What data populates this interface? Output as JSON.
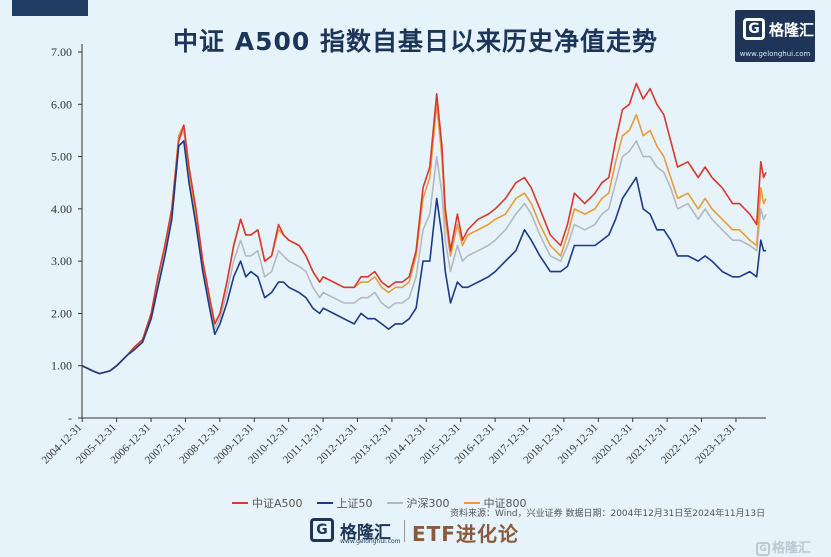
{
  "title": "中证 A500 指数自基日以来历史净值走势",
  "logo": {
    "name": "格隆汇",
    "url": "www.gelonghui.com"
  },
  "source": "资料来源：Wind，兴业证券  数据日期：2004年12月31日至2024年11月13日",
  "footer": {
    "brand": "格隆汇",
    "url": "www.gelonghui.com",
    "column": "ETF进化论"
  },
  "watermark": "格隆汇",
  "chart_data": {
    "type": "line",
    "ylim": [
      0,
      7
    ],
    "yticks": [
      "-",
      "1.00",
      "2.00",
      "3.00",
      "4.00",
      "5.00",
      "6.00",
      "7.00"
    ],
    "xticks": [
      "2004-12-31",
      "2005-12-31",
      "2006-12-31",
      "2007-12-31",
      "2008-12-31",
      "2009-12-31",
      "2010-12-31",
      "2011-12-31",
      "2012-12-31",
      "2013-12-31",
      "2014-12-31",
      "2015-12-31",
      "2016-12-31",
      "2017-12-31",
      "2018-12-31",
      "2019-12-31",
      "2020-12-31",
      "2021-12-31",
      "2022-12-31",
      "2023-12-31"
    ],
    "x": [
      2004.99,
      2005.3,
      2005.5,
      2005.8,
      2006.0,
      2006.3,
      2006.5,
      2006.75,
      2007.0,
      2007.2,
      2007.4,
      2007.6,
      2007.8,
      2007.95,
      2008.1,
      2008.3,
      2008.5,
      2008.7,
      2008.85,
      2009.0,
      2009.2,
      2009.4,
      2009.6,
      2009.75,
      2009.9,
      2010.1,
      2010.3,
      2010.5,
      2010.7,
      2010.85,
      2011.0,
      2011.3,
      2011.5,
      2011.7,
      2011.9,
      2012.0,
      2012.3,
      2012.6,
      2012.9,
      2013.1,
      2013.3,
      2013.5,
      2013.7,
      2013.9,
      2014.1,
      2014.3,
      2014.5,
      2014.7,
      2014.9,
      2015.1,
      2015.3,
      2015.45,
      2015.55,
      2015.7,
      2015.9,
      2016.05,
      2016.2,
      2016.5,
      2016.8,
      2017.0,
      2017.3,
      2017.6,
      2017.85,
      2018.05,
      2018.3,
      2018.6,
      2018.9,
      2019.1,
      2019.3,
      2019.6,
      2019.9,
      2020.1,
      2020.3,
      2020.5,
      2020.7,
      2020.9,
      2021.1,
      2021.3,
      2021.5,
      2021.7,
      2021.9,
      2022.1,
      2022.3,
      2022.6,
      2022.9,
      2023.1,
      2023.3,
      2023.6,
      2023.9,
      2024.1,
      2024.4,
      2024.6,
      2024.72,
      2024.8,
      2024.87
    ],
    "series": [
      {
        "name": "中证A500",
        "color": "#d63a2f",
        "values": [
          1.0,
          0.9,
          0.85,
          0.9,
          1.0,
          1.2,
          1.35,
          1.5,
          2.0,
          2.7,
          3.3,
          4.0,
          5.3,
          5.6,
          4.8,
          4.0,
          3.0,
          2.3,
          1.8,
          2.0,
          2.6,
          3.3,
          3.8,
          3.5,
          3.5,
          3.6,
          3.0,
          3.1,
          3.7,
          3.5,
          3.4,
          3.3,
          3.1,
          2.8,
          2.6,
          2.7,
          2.6,
          2.5,
          2.5,
          2.7,
          2.7,
          2.8,
          2.6,
          2.5,
          2.6,
          2.6,
          2.7,
          3.2,
          4.4,
          4.8,
          6.2,
          5.2,
          4.0,
          3.2,
          3.9,
          3.4,
          3.6,
          3.8,
          3.9,
          4.0,
          4.2,
          4.5,
          4.6,
          4.4,
          4.0,
          3.5,
          3.3,
          3.7,
          4.3,
          4.1,
          4.3,
          4.5,
          4.6,
          5.3,
          5.9,
          6.0,
          6.4,
          6.1,
          6.3,
          6.0,
          5.8,
          5.3,
          4.8,
          4.9,
          4.6,
          4.8,
          4.6,
          4.4,
          4.1,
          4.1,
          3.9,
          3.7,
          4.9,
          4.6,
          4.7
        ]
      },
      {
        "name": "上证50",
        "color": "#1e3a84",
        "values": [
          1.0,
          0.9,
          0.85,
          0.9,
          1.0,
          1.2,
          1.3,
          1.45,
          1.9,
          2.5,
          3.1,
          3.8,
          5.2,
          5.3,
          4.5,
          3.7,
          2.8,
          2.1,
          1.6,
          1.8,
          2.2,
          2.7,
          3.0,
          2.7,
          2.8,
          2.7,
          2.3,
          2.4,
          2.6,
          2.6,
          2.5,
          2.4,
          2.3,
          2.1,
          2.0,
          2.1,
          2.0,
          1.9,
          1.8,
          2.0,
          1.9,
          1.9,
          1.8,
          1.7,
          1.8,
          1.8,
          1.9,
          2.1,
          3.0,
          3.0,
          4.2,
          3.5,
          2.8,
          2.2,
          2.6,
          2.5,
          2.5,
          2.6,
          2.7,
          2.8,
          3.0,
          3.2,
          3.6,
          3.4,
          3.1,
          2.8,
          2.8,
          2.9,
          3.3,
          3.3,
          3.3,
          3.4,
          3.5,
          3.8,
          4.2,
          4.4,
          4.6,
          4.0,
          3.9,
          3.6,
          3.6,
          3.4,
          3.1,
          3.1,
          3.0,
          3.1,
          3.0,
          2.8,
          2.7,
          2.7,
          2.8,
          2.7,
          3.4,
          3.2,
          3.2
        ]
      },
      {
        "name": "沪深300",
        "color": "#b5b9bf",
        "values": [
          1.0,
          0.9,
          0.85,
          0.9,
          1.0,
          1.2,
          1.33,
          1.48,
          1.95,
          2.6,
          3.2,
          3.9,
          5.3,
          5.5,
          4.6,
          3.8,
          2.9,
          2.2,
          1.7,
          1.9,
          2.4,
          3.0,
          3.4,
          3.1,
          3.1,
          3.2,
          2.7,
          2.8,
          3.2,
          3.1,
          3.0,
          2.9,
          2.8,
          2.5,
          2.3,
          2.4,
          2.3,
          2.2,
          2.2,
          2.3,
          2.3,
          2.4,
          2.2,
          2.1,
          2.2,
          2.2,
          2.3,
          2.7,
          3.6,
          3.9,
          5.0,
          4.3,
          3.4,
          2.8,
          3.3,
          3.0,
          3.1,
          3.2,
          3.3,
          3.4,
          3.6,
          3.9,
          4.1,
          3.9,
          3.5,
          3.1,
          3.0,
          3.3,
          3.7,
          3.6,
          3.7,
          3.9,
          4.0,
          4.5,
          5.0,
          5.1,
          5.3,
          5.0,
          5.0,
          4.8,
          4.7,
          4.4,
          4.0,
          4.1,
          3.8,
          4.0,
          3.8,
          3.6,
          3.4,
          3.4,
          3.3,
          3.2,
          4.0,
          3.8,
          3.9
        ]
      },
      {
        "name": "中证800",
        "color": "#ec9a3a",
        "values": [
          1.0,
          0.9,
          0.85,
          0.9,
          1.0,
          1.2,
          1.34,
          1.5,
          2.0,
          2.7,
          3.3,
          4.0,
          5.4,
          5.6,
          4.7,
          3.9,
          3.0,
          2.3,
          1.8,
          2.0,
          2.6,
          3.3,
          3.8,
          3.5,
          3.5,
          3.6,
          3.0,
          3.1,
          3.6,
          3.5,
          3.4,
          3.3,
          3.1,
          2.8,
          2.6,
          2.7,
          2.6,
          2.5,
          2.5,
          2.6,
          2.6,
          2.7,
          2.5,
          2.4,
          2.5,
          2.5,
          2.6,
          3.1,
          4.2,
          4.6,
          6.0,
          5.0,
          3.8,
          3.1,
          3.7,
          3.3,
          3.5,
          3.6,
          3.7,
          3.8,
          3.9,
          4.2,
          4.3,
          4.1,
          3.7,
          3.3,
          3.1,
          3.5,
          4.0,
          3.9,
          4.0,
          4.2,
          4.3,
          4.9,
          5.4,
          5.5,
          5.8,
          5.4,
          5.5,
          5.2,
          5.0,
          4.6,
          4.2,
          4.3,
          4.0,
          4.2,
          4.0,
          3.8,
          3.6,
          3.6,
          3.4,
          3.3,
          4.4,
          4.1,
          4.2
        ]
      }
    ]
  }
}
